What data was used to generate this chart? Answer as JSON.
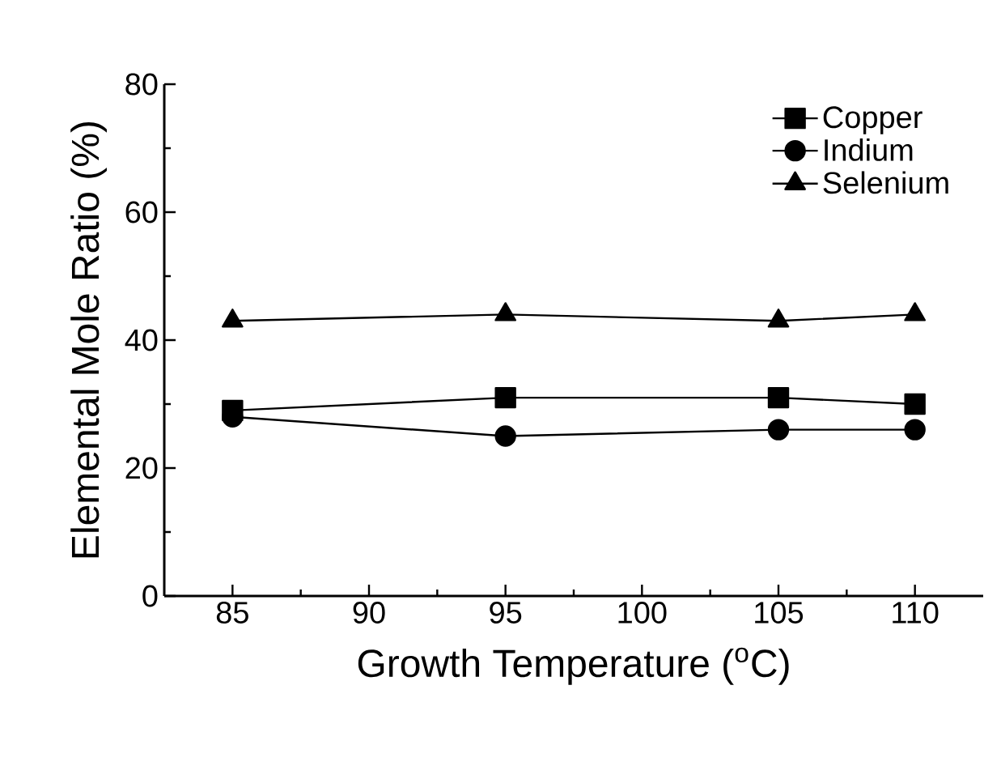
{
  "chart_data": {
    "type": "line",
    "xlabel": "Growth Temperature ($^{o}$C)",
    "ylabel": "Elemental Mole Ratio (%)",
    "x": [
      85,
      95,
      105,
      110
    ],
    "series": [
      {
        "name": "Copper",
        "color": "#000000",
        "marker": "square",
        "values": [
          29,
          31,
          31,
          30
        ]
      },
      {
        "name": "Indium",
        "color": "#000000",
        "marker": "circle",
        "values": [
          28,
          25,
          26,
          26
        ]
      },
      {
        "name": "Selenium",
        "color": "#000000",
        "marker": "triangle",
        "values": [
          43,
          44,
          43,
          44
        ]
      }
    ],
    "xlim": [
      82.5,
      112.5
    ],
    "ylim": [
      0,
      80
    ],
    "xticks": [
      85,
      90,
      95,
      100,
      105,
      110
    ],
    "yticks": [
      0,
      20,
      40,
      60,
      80
    ],
    "grid": false,
    "legend": "top right",
    "line_style": "solid"
  }
}
